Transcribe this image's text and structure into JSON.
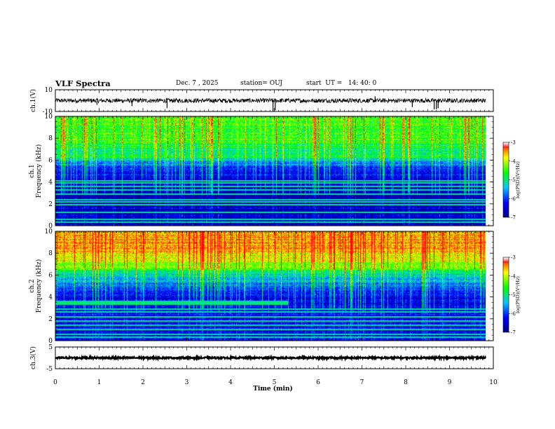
{
  "header": {
    "title": "VLF Spectra",
    "date": "Dec. 7 , 2025",
    "station": "station= OUJ",
    "start": "start  UT =   14: 40: 0"
  },
  "chart_data": {
    "type": "heatmap",
    "x": {
      "label": "Time  (min)",
      "range": [
        0,
        10
      ],
      "ticks": [
        "0",
        "1",
        "2",
        "3",
        "4",
        "5",
        "6",
        "7",
        "8",
        "9",
        "10"
      ],
      "data_end": 9.82
    },
    "panels": [
      {
        "id": "ch1-waveform",
        "type": "line",
        "ylabel": "ch.1(V)",
        "ylim": [
          -10,
          10
        ],
        "yticks": [
          "10",
          "-10"
        ],
        "baseline": 0,
        "noise_amplitude": 2,
        "spikes": [
          {
            "t": 0.95,
            "v": -4
          },
          {
            "t": 1.75,
            "v": -5
          },
          {
            "t": 2.55,
            "v": -7
          },
          {
            "t": 4.97,
            "v": -10
          },
          {
            "t": 5.02,
            "v": -9
          },
          {
            "t": 7.3,
            "v": 4
          },
          {
            "t": 8.15,
            "v": -6
          },
          {
            "t": 8.65,
            "v": -8
          },
          {
            "t": 8.7,
            "v": -8
          },
          {
            "t": 8.74,
            "v": -7
          }
        ]
      },
      {
        "id": "ch1-spectrogram",
        "type": "heatmap",
        "title": "ch.1",
        "ylabel": "Frequency  (kHz)",
        "ylim": [
          0,
          10
        ],
        "yticks": [
          "0",
          "2",
          "4",
          "6",
          "8",
          "10"
        ],
        "log_psd_upper_band": -4.5,
        "log_psd_mid_band": -5.6,
        "log_psd_low_band": -6.6,
        "low_band_top_khz": 4.1,
        "upper_band_bottom_khz": 6.0,
        "narrowband_lines_khz": [
          0.3,
          0.6,
          1.2,
          1.9,
          2.2,
          2.4,
          2.9,
          3.3,
          3.6,
          3.9,
          4.1
        ]
      },
      {
        "id": "ch2-spectrogram",
        "type": "heatmap",
        "title": "ch.2",
        "ylabel": "Frequency  (kHz)",
        "ylim": [
          0,
          10
        ],
        "yticks": [
          "0",
          "2",
          "4",
          "6",
          "8",
          "10"
        ],
        "log_psd_upper_band": -3.6,
        "log_psd_mid_band": -5.0,
        "log_psd_low_band": -6.4,
        "low_band_top_khz": 3.8,
        "upper_band_bottom_khz": 6.5,
        "narrowband_lines_khz": [
          0.3,
          0.6,
          1.0,
          1.4,
          1.8,
          2.2,
          2.6,
          2.9
        ],
        "band_feature": {
          "t_start": 0.0,
          "t_end": 5.3,
          "f_low_khz": 3.3,
          "f_high_khz": 3.7,
          "log_psd": -5.0
        }
      },
      {
        "id": "ch3-waveform",
        "type": "line",
        "ylabel": "ch.3(V)",
        "ylim": [
          -5,
          5
        ],
        "yticks": [
          "5",
          "-5"
        ],
        "baseline": 0,
        "noise_amplitude": 0.4
      }
    ],
    "colorbar": {
      "label": "log(PSD)(V²/Hz)",
      "range": [
        -7,
        -3
      ],
      "ticks": [
        "-3",
        "-4",
        "-5",
        "-6",
        "-7"
      ],
      "colors": [
        "#000080",
        "#0000ff",
        "#00c8ff",
        "#00ff00",
        "#ffff00",
        "#ff0000",
        "#ffffff"
      ]
    }
  }
}
